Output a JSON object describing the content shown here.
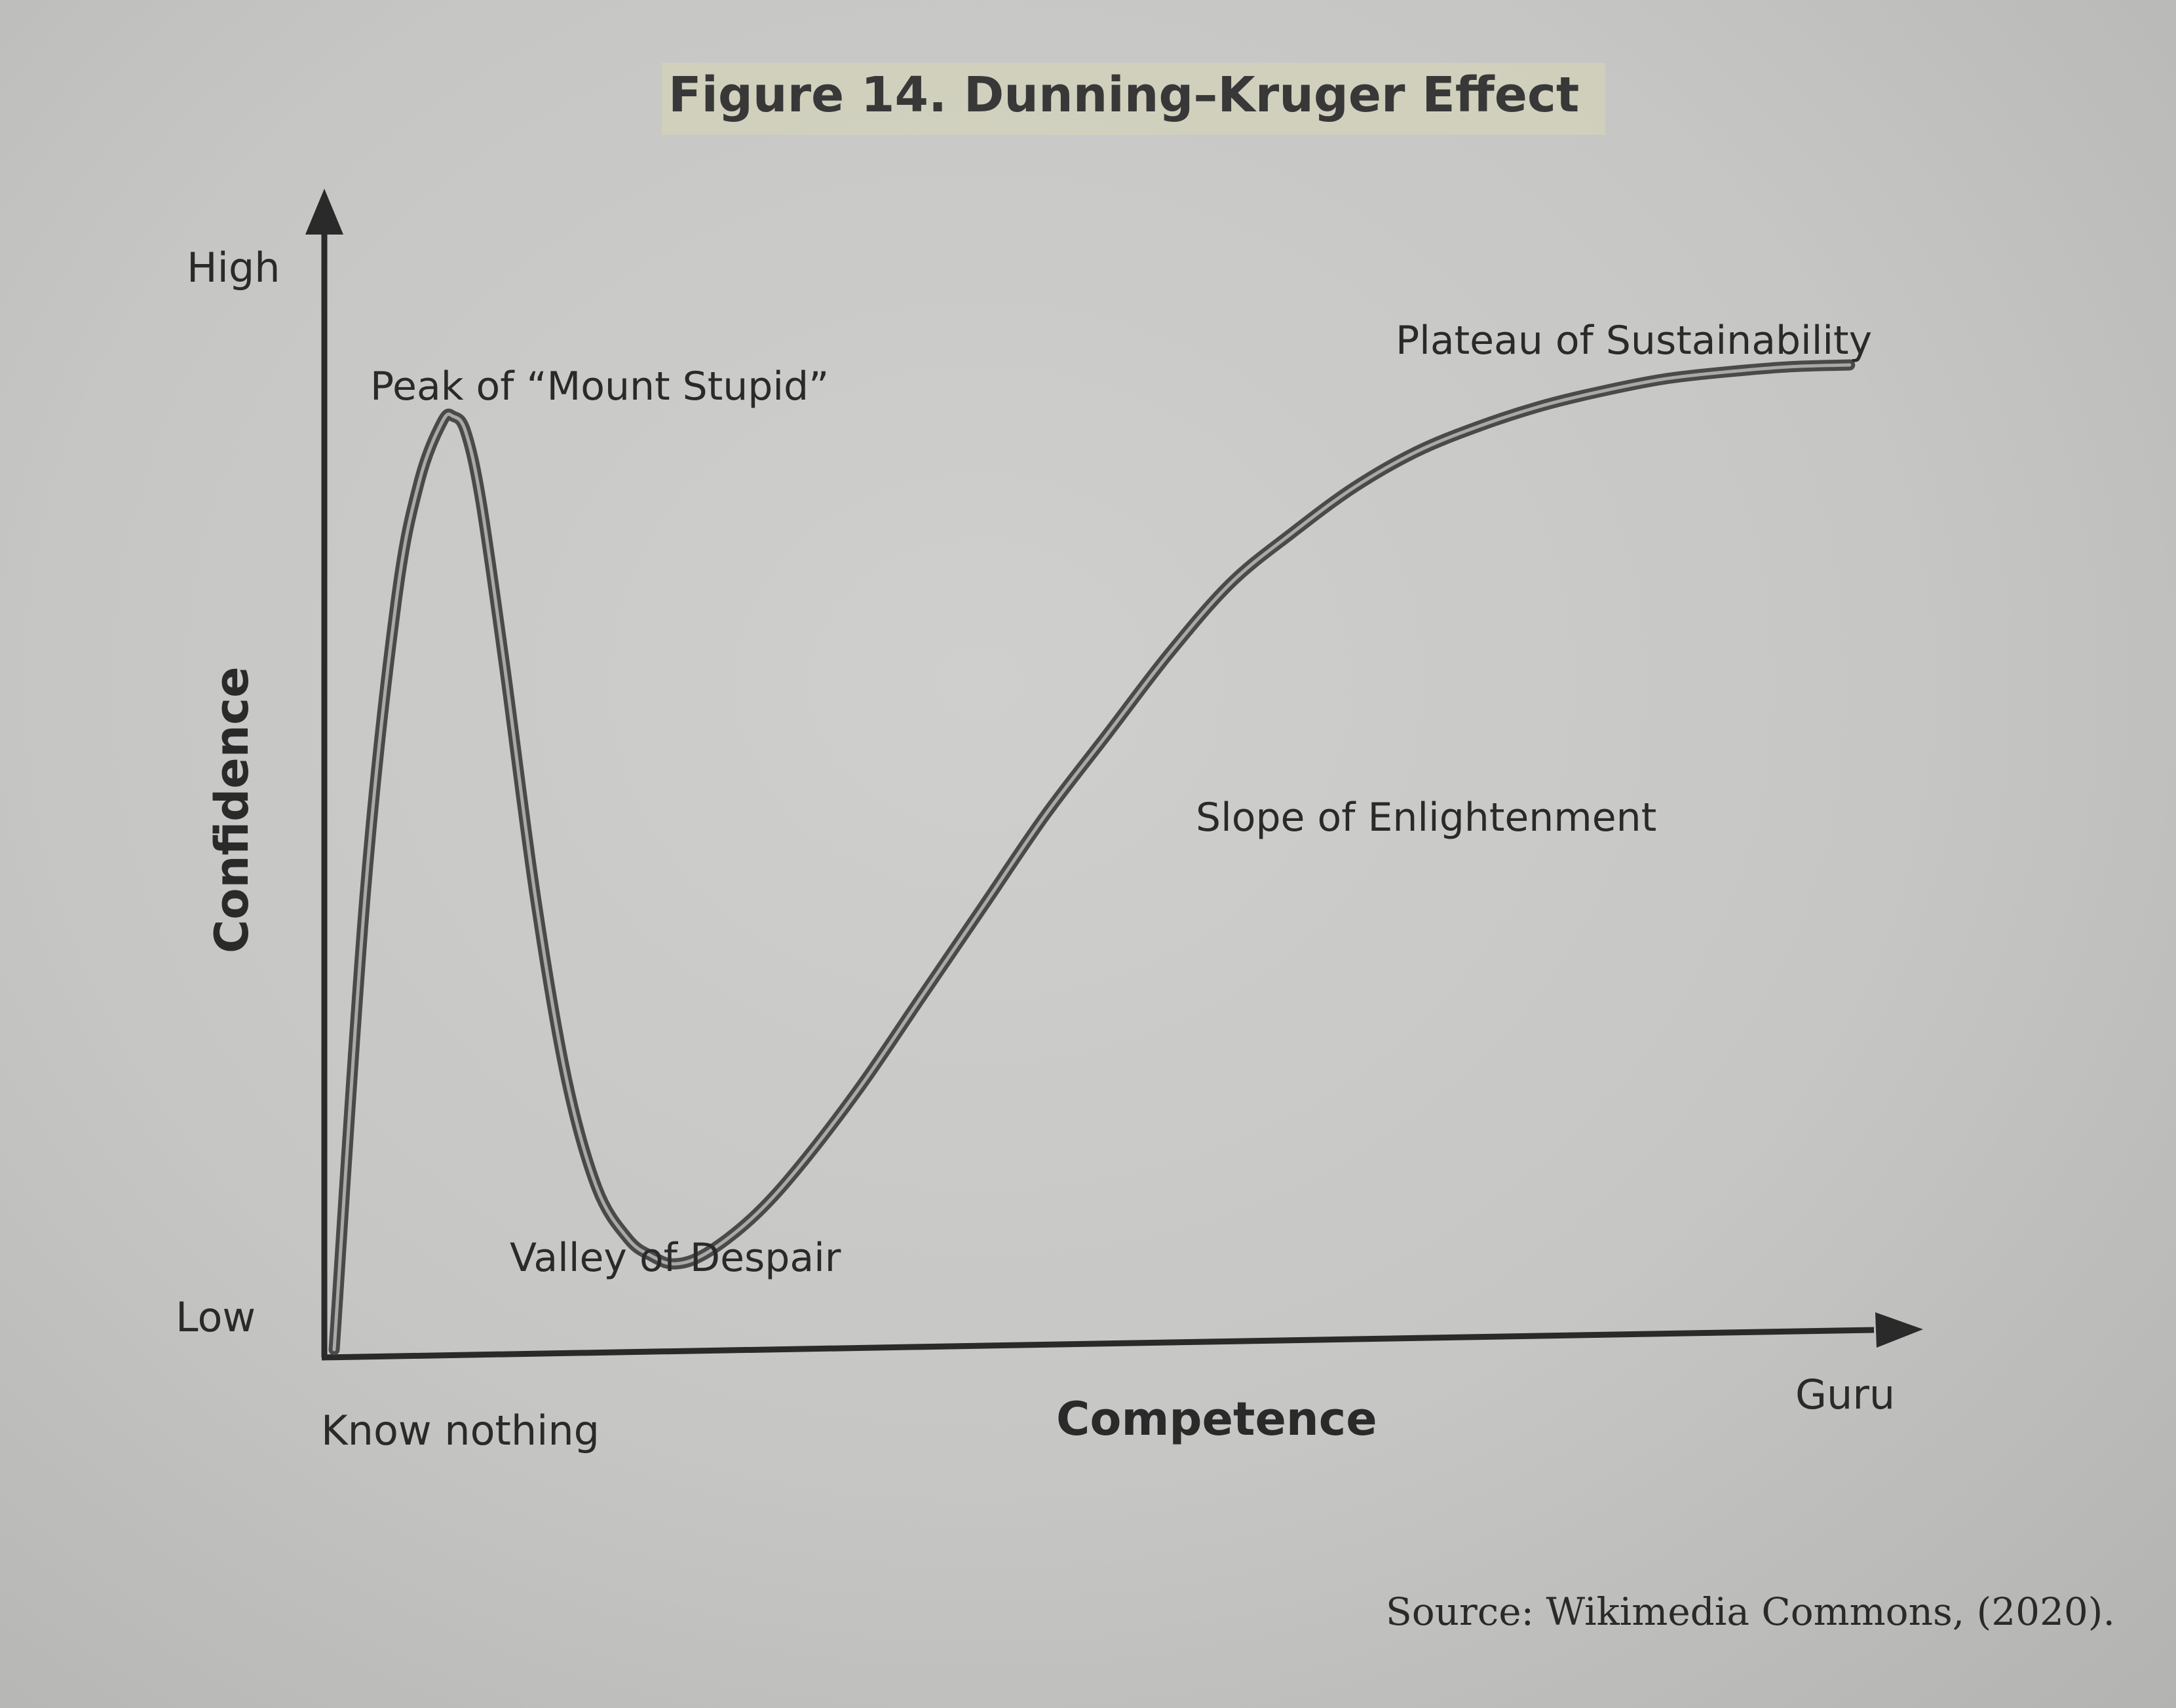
{
  "chart_data": {
    "type": "line",
    "title": "Figure 14. Dunning–Kruger Effect",
    "xlabel": "Competence",
    "ylabel": "Confidence",
    "x_tick_labels": {
      "start": "Know nothing",
      "end": "Guru"
    },
    "y_tick_labels": {
      "bottom": "Low",
      "top": "High"
    },
    "xlim": [
      0,
      100
    ],
    "ylim": [
      0,
      100
    ],
    "grid": false,
    "legend": "none",
    "series": [
      {
        "color": "#4a4a4a",
        "x": [
          0,
          2,
          4,
          5.5,
          7,
          7.7,
          8.5,
          9.5,
          11,
          13,
          15,
          17,
          19,
          20.5,
          22,
          24,
          27,
          30,
          34,
          38,
          42,
          46,
          50,
          54,
          58,
          62,
          66,
          70,
          74,
          78,
          82,
          86,
          90,
          94,
          98
        ],
        "y": [
          0,
          45,
          74,
          86,
          92,
          92.5,
          91,
          84,
          68,
          45,
          27,
          16,
          11,
          9.3,
          8.5,
          9.5,
          13,
          18,
          26,
          35,
          44,
          53,
          61,
          69,
          76,
          81,
          85.5,
          89,
          91.5,
          93.5,
          95,
          96.2,
          96.9,
          97.4,
          97.6
        ]
      }
    ],
    "annotations": [
      {
        "text": "Peak of “Mount Stupid”",
        "x": 7.5,
        "y": 92.5
      },
      {
        "text": "Valley of Despair",
        "x": 20.5,
        "y": 9.3
      },
      {
        "text": "Slope of Enlightenment",
        "x": 52,
        "y": 57
      },
      {
        "text": "Plateau of Sustainability",
        "x": 94,
        "y": 97.4
      }
    ],
    "source": "Source: Wikimedia Commons, (2020)."
  }
}
